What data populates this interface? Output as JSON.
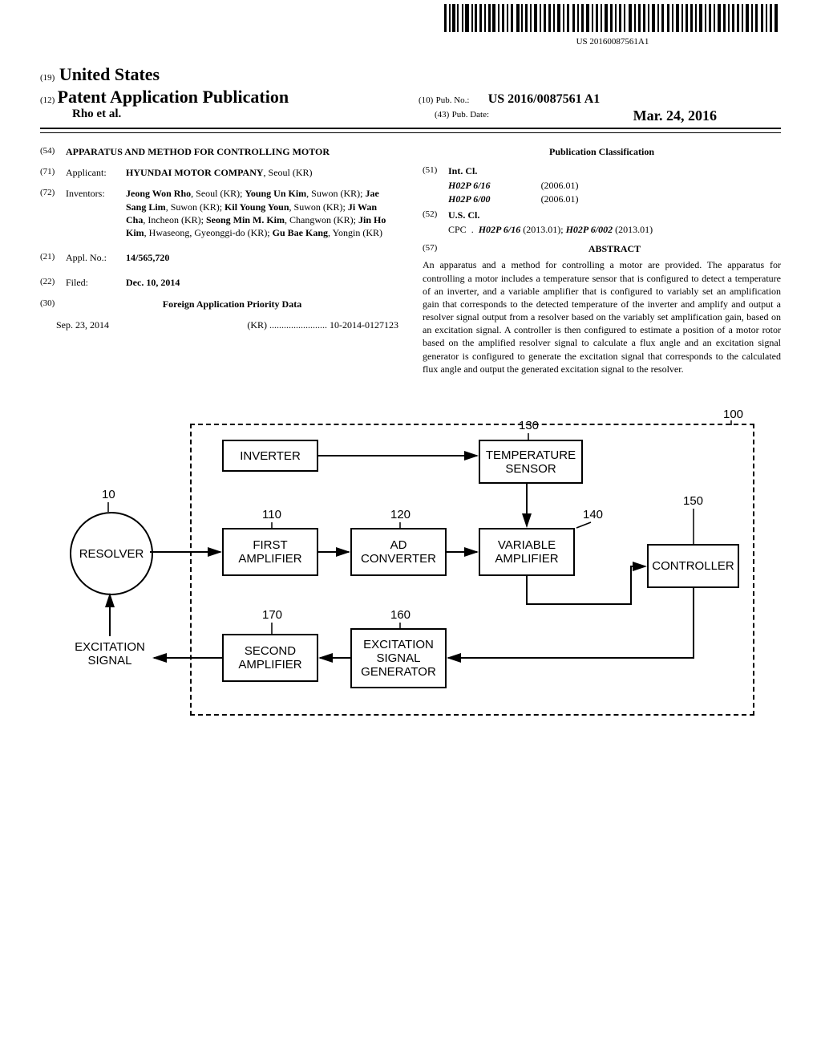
{
  "barcode": {
    "sub_text": "US 20160087561A1"
  },
  "header": {
    "inid19": "(19)",
    "country": "United States",
    "inid12": "(12)",
    "pub_title": "Patent Application Publication",
    "authors_line": "Rho et al.",
    "inid10": "(10)",
    "pub_no_label": "Pub. No.:",
    "pub_no": "US 2016/0087561 A1",
    "inid43": "(43)",
    "pub_date_label": "Pub. Date:",
    "pub_date": "Mar. 24, 2016"
  },
  "left_col": {
    "s54": {
      "num": "(54)",
      "title": "APPARATUS AND METHOD FOR CONTROLLING MOTOR"
    },
    "s71": {
      "num": "(71)",
      "label": "Applicant:",
      "content": "HYUNDAI MOTOR COMPANY",
      "loc": "Seoul (KR)"
    },
    "s72": {
      "num": "(72)",
      "label": "Inventors:",
      "content": "Jeong Won Rho, Seoul (KR); Young Un Kim, Suwon (KR); Jae Sang Lim, Suwon (KR); Kil Young Youn, Suwon (KR); Ji Wan Cha, Incheon (KR); Seong Min M. Kim, Changwon (KR); Jin Ho Kim, Hwaseong, Gyeonggi-do (KR); Gu Bae Kang, Yongin (KR)"
    },
    "s21": {
      "num": "(21)",
      "label": "Appl. No.:",
      "content": "14/565,720"
    },
    "s22": {
      "num": "(22)",
      "label": "Filed:",
      "content": "Dec. 10, 2014"
    },
    "s30": {
      "num": "(30)",
      "title": "Foreign Application Priority Data"
    },
    "priority": {
      "date": "Sep. 23, 2014",
      "country": "(KR)",
      "dots": "........................",
      "num": "10-2014-0127123"
    }
  },
  "right_col": {
    "pub_class_title": "Publication Classification",
    "s51": {
      "num": "(51)",
      "label": "Int. Cl."
    },
    "intcl1": {
      "code": "H02P 6/16",
      "year": "(2006.01)"
    },
    "intcl2": {
      "code": "H02P 6/00",
      "year": "(2006.01)"
    },
    "s52": {
      "num": "(52)",
      "label": "U.S. Cl."
    },
    "cpc_label": "CPC",
    "cpc_dots": ".",
    "cpc1": "H02P 6/16",
    "cpc1_year": "(2013.01);",
    "cpc2": "H02P 6/002",
    "cpc2_year": "(2013.01)",
    "s57": {
      "num": "(57)",
      "title": "ABSTRACT"
    },
    "abstract": "An apparatus and a method for controlling a motor are provided. The apparatus for controlling a motor includes a temperature sensor that is configured to detect a temperature of an inverter, and a variable amplifier that is configured to variably set an amplification gain that corresponds to the detected temperature of the inverter and amplify and output a resolver signal output from a resolver based on the variably set amplification gain, based on an excitation signal. A controller is then configured to estimate a position of a motor rotor based on the amplified resolver signal to calculate a flux angle and an excitation signal generator is configured to generate the excitation signal that corresponds to the calculated flux angle and output the generated excitation signal to the resolver."
  },
  "diagram": {
    "resolver": "RESOLVER",
    "resolver_num": "10",
    "excitation_signal": "EXCITATION\nSIGNAL",
    "inverter": "INVERTER",
    "first_amp": "FIRST\nAMPLIFIER",
    "first_amp_num": "110",
    "ad_conv": "AD\nCONVERTER",
    "ad_conv_num": "120",
    "temp_sensor": "TEMPERATURE\nSENSOR",
    "temp_sensor_num": "130",
    "var_amp": "VARIABLE\nAMPLIFIER",
    "var_amp_num": "140",
    "controller": "CONTROLLER",
    "controller_num": "150",
    "exc_gen": "EXCITATION\nSIGNAL\nGENERATOR",
    "exc_gen_num": "160",
    "second_amp": "SECOND\nAMPLIFIER",
    "second_amp_num": "170",
    "sys_num": "100"
  }
}
